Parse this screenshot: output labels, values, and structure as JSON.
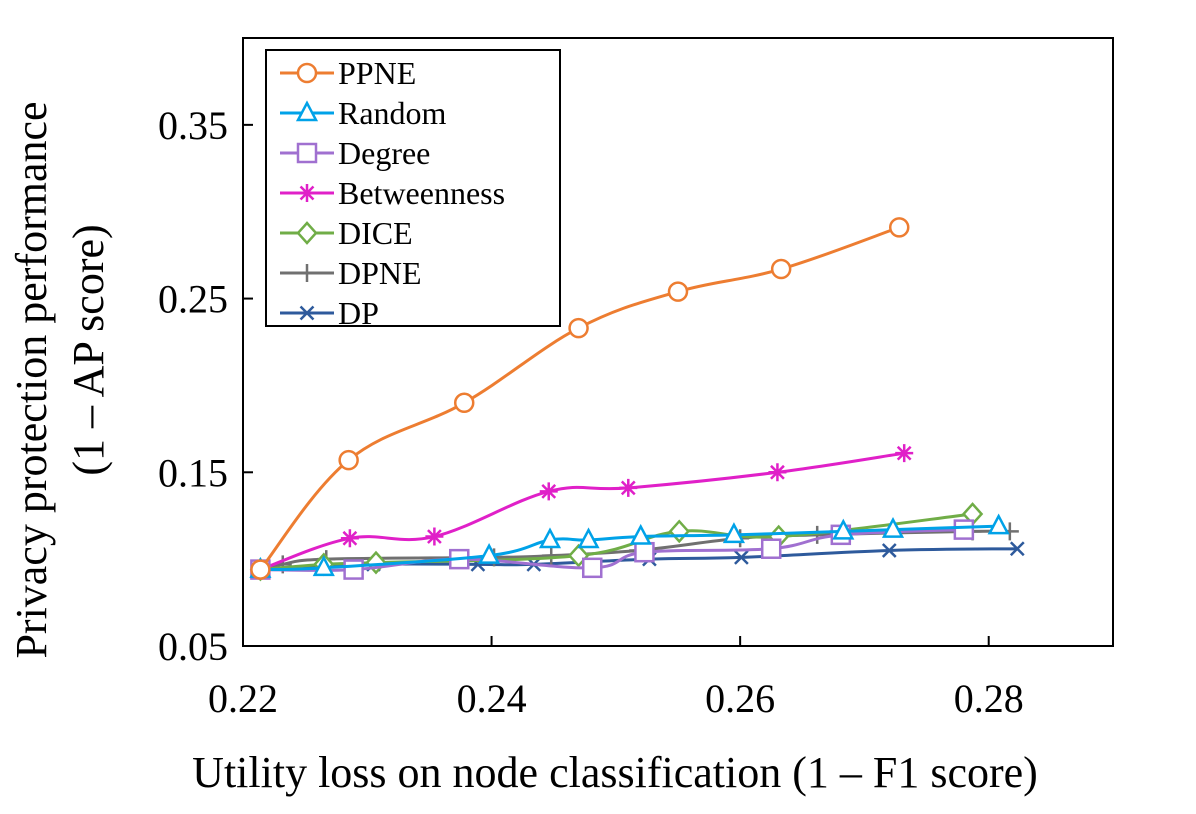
{
  "chart_data": {
    "type": "line",
    "title": "",
    "xlabel": "Utility loss on node classification (1 – F1 score)",
    "ylabel_line1": "Privacy protection performance",
    "ylabel_line2": "(1 – AP score)",
    "xlim": [
      0.22,
      0.29
    ],
    "ylim": [
      0.05,
      0.4
    ],
    "xticks": [
      0.22,
      0.24,
      0.26,
      0.28
    ],
    "xtick_labels": [
      "0.22",
      "0.24",
      "0.26",
      "0.28"
    ],
    "yticks": [
      0.05,
      0.15,
      0.25,
      0.35
    ],
    "ytick_labels": [
      "0.05",
      "0.15",
      "0.25",
      "0.35"
    ],
    "grid": false,
    "legend_position": "top-left",
    "series": [
      {
        "name": "PPNE",
        "color": "#ED7D31",
        "marker": "circle",
        "points": [
          [
            0.2214,
            0.094
          ],
          [
            0.2285,
            0.157
          ],
          [
            0.2378,
            0.19
          ],
          [
            0.247,
            0.233
          ],
          [
            0.255,
            0.254
          ],
          [
            0.2633,
            0.267
          ],
          [
            0.2728,
            0.291
          ]
        ]
      },
      {
        "name": "Random",
        "color": "#00A2E8",
        "marker": "triangle",
        "points": [
          [
            0.2214,
            0.094
          ],
          [
            0.2265,
            0.095
          ],
          [
            0.2398,
            0.102
          ],
          [
            0.2447,
            0.111
          ],
          [
            0.2478,
            0.111
          ],
          [
            0.252,
            0.113
          ],
          [
            0.2595,
            0.114
          ],
          [
            0.2683,
            0.116
          ],
          [
            0.2723,
            0.117
          ],
          [
            0.2808,
            0.119
          ]
        ]
      },
      {
        "name": "Degree",
        "color": "#A070D0",
        "marker": "square",
        "points": [
          [
            0.2214,
            0.094
          ],
          [
            0.2289,
            0.094
          ],
          [
            0.2374,
            0.1
          ],
          [
            0.2481,
            0.095
          ],
          [
            0.2523,
            0.104
          ],
          [
            0.2625,
            0.106
          ],
          [
            0.2681,
            0.114
          ],
          [
            0.278,
            0.117
          ]
        ]
      },
      {
        "name": "Betweenness",
        "color": "#E020C8",
        "marker": "asterisk",
        "points": [
          [
            0.2214,
            0.094
          ],
          [
            0.2286,
            0.112
          ],
          [
            0.2354,
            0.113
          ],
          [
            0.2446,
            0.139
          ],
          [
            0.251,
            0.141
          ],
          [
            0.263,
            0.15
          ],
          [
            0.2732,
            0.161
          ]
        ]
      },
      {
        "name": "DICE",
        "color": "#70AD47",
        "marker": "diamond",
        "points": [
          [
            0.2214,
            0.094
          ],
          [
            0.2265,
            0.097
          ],
          [
            0.2307,
            0.098
          ],
          [
            0.247,
            0.102
          ],
          [
            0.2551,
            0.116
          ],
          [
            0.2631,
            0.113
          ],
          [
            0.2787,
            0.126
          ]
        ]
      },
      {
        "name": "DPNE",
        "color": "#707070",
        "marker": "plus",
        "points": [
          [
            0.2214,
            0.094
          ],
          [
            0.2232,
            0.097
          ],
          [
            0.2267,
            0.1
          ],
          [
            0.2402,
            0.101
          ],
          [
            0.2448,
            0.102
          ],
          [
            0.2518,
            0.105
          ],
          [
            0.26,
            0.112
          ],
          [
            0.2662,
            0.114
          ],
          [
            0.2787,
            0.116
          ],
          [
            0.2817,
            0.116
          ]
        ]
      },
      {
        "name": "DP",
        "color": "#2E5A9C",
        "marker": "x",
        "points": [
          [
            0.2214,
            0.094
          ],
          [
            0.2305,
            0.097
          ],
          [
            0.2389,
            0.097
          ],
          [
            0.2434,
            0.097
          ],
          [
            0.2527,
            0.1
          ],
          [
            0.2601,
            0.101
          ],
          [
            0.272,
            0.105
          ],
          [
            0.2823,
            0.106
          ]
        ]
      }
    ]
  }
}
